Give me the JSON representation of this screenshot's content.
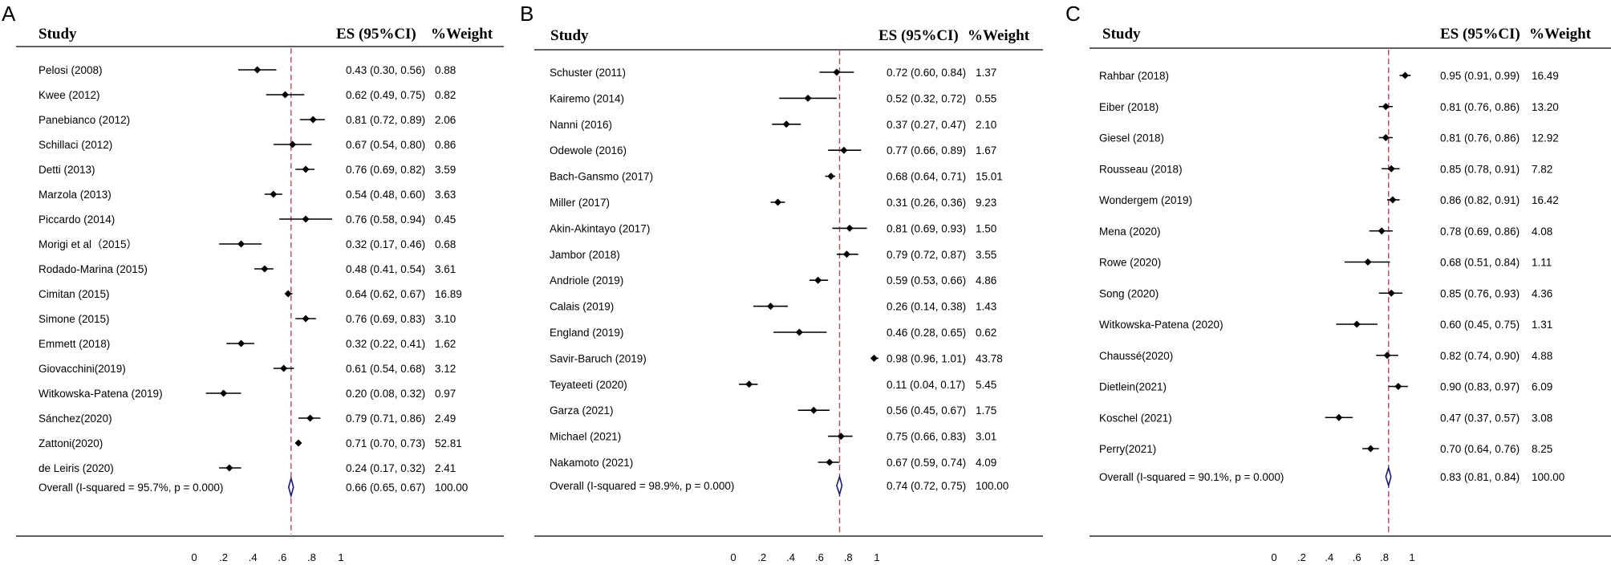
{
  "chart_data": [
    {
      "type": "forest",
      "panel_label": "A",
      "headers": {
        "study": "Study",
        "es": "ES (95%CI)",
        "weight": "%Weight"
      },
      "xlim": [
        0,
        1
      ],
      "tick_labels": [
        "0",
        ".2",
        ".4",
        ".6",
        ".8",
        "1"
      ],
      "tick_values": [
        0,
        0.2,
        0.4,
        0.6,
        0.8,
        1
      ],
      "reference_line": 0.66,
      "rows": [
        {
          "study": "Pelosi (2008)",
          "es": 0.43,
          "lo": 0.3,
          "hi": 0.56,
          "es_text": "0.43 (0.30, 0.56)",
          "weight": "0.88"
        },
        {
          "study": "Kwee (2012)",
          "es": 0.62,
          "lo": 0.49,
          "hi": 0.75,
          "es_text": "0.62 (0.49, 0.75)",
          "weight": "0.82"
        },
        {
          "study": "Panebianco (2012)",
          "es": 0.81,
          "lo": 0.72,
          "hi": 0.89,
          "es_text": "0.81 (0.72, 0.89)",
          "weight": "2.06"
        },
        {
          "study": "Schillaci (2012)",
          "es": 0.67,
          "lo": 0.54,
          "hi": 0.8,
          "es_text": "0.67 (0.54, 0.80)",
          "weight": "0.86"
        },
        {
          "study": "Detti (2013)",
          "es": 0.76,
          "lo": 0.69,
          "hi": 0.82,
          "es_text": "0.76 (0.69, 0.82)",
          "weight": "3.59"
        },
        {
          "study": "Marzola (2013)",
          "es": 0.54,
          "lo": 0.48,
          "hi": 0.6,
          "es_text": "0.54 (0.48, 0.60)",
          "weight": "3.63"
        },
        {
          "study": "Piccardo (2014)",
          "es": 0.76,
          "lo": 0.58,
          "hi": 0.94,
          "es_text": "0.76 (0.58, 0.94)",
          "weight": "0.45"
        },
        {
          "study": "Morigi et al（2015）",
          "es": 0.32,
          "lo": 0.17,
          "hi": 0.46,
          "es_text": "0.32 (0.17, 0.46)",
          "weight": "0.68"
        },
        {
          "study": "Rodado-Marina (2015)",
          "es": 0.48,
          "lo": 0.41,
          "hi": 0.54,
          "es_text": "0.48 (0.41, 0.54)",
          "weight": "3.61"
        },
        {
          "study": "Cimitan (2015)",
          "es": 0.64,
          "lo": 0.62,
          "hi": 0.67,
          "es_text": "0.64 (0.62, 0.67)",
          "weight": "16.89"
        },
        {
          "study": "Simone (2015)",
          "es": 0.76,
          "lo": 0.69,
          "hi": 0.83,
          "es_text": "0.76 (0.69, 0.83)",
          "weight": "3.10"
        },
        {
          "study": "Emmett (2018)",
          "es": 0.32,
          "lo": 0.22,
          "hi": 0.41,
          "es_text": "0.32 (0.22, 0.41)",
          "weight": "1.62"
        },
        {
          "study": "Giovacchini(2019)",
          "es": 0.61,
          "lo": 0.54,
          "hi": 0.68,
          "es_text": "0.61 (0.54, 0.68)",
          "weight": "3.12"
        },
        {
          "study": "Witkowska-Patena (2019)",
          "es": 0.2,
          "lo": 0.08,
          "hi": 0.32,
          "es_text": "0.20 (0.08, 0.32)",
          "weight": "0.97"
        },
        {
          "study": "Sánchez(2020)",
          "es": 0.79,
          "lo": 0.71,
          "hi": 0.86,
          "es_text": "0.79 (0.71, 0.86)",
          "weight": "2.49"
        },
        {
          "study": "Zattoni(2020)",
          "es": 0.71,
          "lo": 0.7,
          "hi": 0.73,
          "es_text": "0.71 (0.70, 0.73)",
          "weight": "52.81"
        },
        {
          "study": "de Leiris (2020)",
          "es": 0.24,
          "lo": 0.17,
          "hi": 0.32,
          "es_text": "0.24 (0.17, 0.32)",
          "weight": "2.41"
        }
      ],
      "overall": {
        "label": "Overall  (I-squared = 95.7%, p = 0.000)",
        "es": 0.66,
        "lo": 0.65,
        "hi": 0.67,
        "es_text": "0.66 (0.65, 0.67)",
        "weight": "100.00"
      }
    },
    {
      "type": "forest",
      "panel_label": "B",
      "headers": {
        "study": "Study",
        "es": "ES (95%CI)",
        "weight": "%Weight"
      },
      "xlim": [
        0,
        1
      ],
      "tick_labels": [
        "0",
        ".2",
        ".4",
        ".6",
        ".8",
        "1"
      ],
      "tick_values": [
        0,
        0.2,
        0.4,
        0.6,
        0.8,
        1
      ],
      "reference_line": 0.74,
      "rows": [
        {
          "study": "Schuster (2011)",
          "es": 0.72,
          "lo": 0.6,
          "hi": 0.84,
          "es_text": "0.72 (0.60, 0.84)",
          "weight": "1.37"
        },
        {
          "study": "Kairemo (2014)",
          "es": 0.52,
          "lo": 0.32,
          "hi": 0.72,
          "es_text": "0.52 (0.32, 0.72)",
          "weight": "0.55"
        },
        {
          "study": "Nanni (2016)",
          "es": 0.37,
          "lo": 0.27,
          "hi": 0.47,
          "es_text": "0.37 (0.27, 0.47)",
          "weight": "2.10"
        },
        {
          "study": "Odewole (2016)",
          "es": 0.77,
          "lo": 0.66,
          "hi": 0.89,
          "es_text": "0.77 (0.66, 0.89)",
          "weight": "1.67"
        },
        {
          "study": "Bach-Gansmo (2017)",
          "es": 0.68,
          "lo": 0.64,
          "hi": 0.71,
          "es_text": "0.68 (0.64, 0.71)",
          "weight": "15.01"
        },
        {
          "study": "Miller (2017)",
          "es": 0.31,
          "lo": 0.26,
          "hi": 0.36,
          "es_text": "0.31 (0.26, 0.36)",
          "weight": "9.23"
        },
        {
          "study": "Akin-Akintayo (2017)",
          "es": 0.81,
          "lo": 0.69,
          "hi": 0.93,
          "es_text": "0.81 (0.69, 0.93)",
          "weight": "1.50"
        },
        {
          "study": "Jambor (2018)",
          "es": 0.79,
          "lo": 0.72,
          "hi": 0.87,
          "es_text": "0.79 (0.72, 0.87)",
          "weight": "3.55"
        },
        {
          "study": "Andriole (2019)",
          "es": 0.59,
          "lo": 0.53,
          "hi": 0.66,
          "es_text": "0.59 (0.53, 0.66)",
          "weight": "4.86"
        },
        {
          "study": "Calais (2019)",
          "es": 0.26,
          "lo": 0.14,
          "hi": 0.38,
          "es_text": "0.26 (0.14, 0.38)",
          "weight": "1.43"
        },
        {
          "study": "England (2019)",
          "es": 0.46,
          "lo": 0.28,
          "hi": 0.65,
          "es_text": "0.46 (0.28, 0.65)",
          "weight": "0.62"
        },
        {
          "study": "Savir-Baruch (2019)",
          "es": 0.98,
          "lo": 0.96,
          "hi": 1.01,
          "es_text": "0.98 (0.96, 1.01)",
          "weight": "43.78"
        },
        {
          "study": "Teyateeti (2020)",
          "es": 0.11,
          "lo": 0.04,
          "hi": 0.17,
          "es_text": "0.11 (0.04, 0.17)",
          "weight": "5.45"
        },
        {
          "study": "Garza (2021)",
          "es": 0.56,
          "lo": 0.45,
          "hi": 0.67,
          "es_text": "0.56 (0.45, 0.67)",
          "weight": "1.75"
        },
        {
          "study": "Michael (2021)",
          "es": 0.75,
          "lo": 0.66,
          "hi": 0.83,
          "es_text": "0.75 (0.66, 0.83)",
          "weight": "3.01"
        },
        {
          "study": "Nakamoto (2021)",
          "es": 0.67,
          "lo": 0.59,
          "hi": 0.74,
          "es_text": "0.67 (0.59, 0.74)",
          "weight": "4.09"
        }
      ],
      "overall": {
        "label": "Overall  (I-squared = 98.9%, p = 0.000)",
        "es": 0.74,
        "lo": 0.72,
        "hi": 0.75,
        "es_text": "0.74 (0.72, 0.75)",
        "weight": "100.00"
      }
    },
    {
      "type": "forest",
      "panel_label": "C",
      "headers": {
        "study": "Study",
        "es": "ES (95%CI)",
        "weight": "%Weight"
      },
      "xlim": [
        0,
        1
      ],
      "tick_labels": [
        "0",
        ".2",
        ".4",
        ".6",
        ".8",
        "1"
      ],
      "tick_values": [
        0,
        0.2,
        0.4,
        0.6,
        0.8,
        1
      ],
      "reference_line": 0.83,
      "rows": [
        {
          "study": "Rahbar (2018)",
          "es": 0.95,
          "lo": 0.91,
          "hi": 0.99,
          "es_text": "0.95 (0.91, 0.99)",
          "weight": "16.49"
        },
        {
          "study": "Eiber (2018)",
          "es": 0.81,
          "lo": 0.76,
          "hi": 0.86,
          "es_text": "0.81 (0.76, 0.86)",
          "weight": "13.20"
        },
        {
          "study": "Giesel (2018)",
          "es": 0.81,
          "lo": 0.76,
          "hi": 0.86,
          "es_text": "0.81 (0.76, 0.86)",
          "weight": "12.92"
        },
        {
          "study": "Rousseau (2018)",
          "es": 0.85,
          "lo": 0.78,
          "hi": 0.91,
          "es_text": "0.85 (0.78, 0.91)",
          "weight": "7.82"
        },
        {
          "study": "Wondergem (2019)",
          "es": 0.86,
          "lo": 0.82,
          "hi": 0.91,
          "es_text": "0.86 (0.82, 0.91)",
          "weight": "16.42"
        },
        {
          "study": "Mena (2020)",
          "es": 0.78,
          "lo": 0.69,
          "hi": 0.86,
          "es_text": "0.78 (0.69, 0.86)",
          "weight": "4.08"
        },
        {
          "study": "Rowe (2020)",
          "es": 0.68,
          "lo": 0.51,
          "hi": 0.84,
          "es_text": "0.68 (0.51, 0.84)",
          "weight": "1.11"
        },
        {
          "study": "Song (2020)",
          "es": 0.85,
          "lo": 0.76,
          "hi": 0.93,
          "es_text": "0.85 (0.76, 0.93)",
          "weight": "4.36"
        },
        {
          "study": "Witkowska-Patena (2020)",
          "es": 0.6,
          "lo": 0.45,
          "hi": 0.75,
          "es_text": "0.60 (0.45, 0.75)",
          "weight": "1.31"
        },
        {
          "study": "Chaussé(2020)",
          "es": 0.82,
          "lo": 0.74,
          "hi": 0.9,
          "es_text": "0.82 (0.74, 0.90)",
          "weight": "4.88"
        },
        {
          "study": "Dietlein(2021)",
          "es": 0.9,
          "lo": 0.83,
          "hi": 0.97,
          "es_text": "0.90 (0.83, 0.97)",
          "weight": "6.09"
        },
        {
          "study": "Koschel (2021)",
          "es": 0.47,
          "lo": 0.37,
          "hi": 0.57,
          "es_text": "0.47 (0.37, 0.57)",
          "weight": "3.08"
        },
        {
          "study": "Perry(2021)",
          "es": 0.7,
          "lo": 0.64,
          "hi": 0.76,
          "es_text": "0.70 (0.64, 0.76)",
          "weight": "8.25"
        }
      ],
      "overall": {
        "label": "Overall  (I-squared = 90.1%, p = 0.000)",
        "es": 0.83,
        "lo": 0.81,
        "hi": 0.84,
        "es_text": "0.83 (0.81, 0.84)",
        "weight": "100.00"
      }
    }
  ],
  "colors": {
    "reference_line": "#b04a5a",
    "overall_diamond": "#1a1a7a",
    "text": "#000000"
  }
}
